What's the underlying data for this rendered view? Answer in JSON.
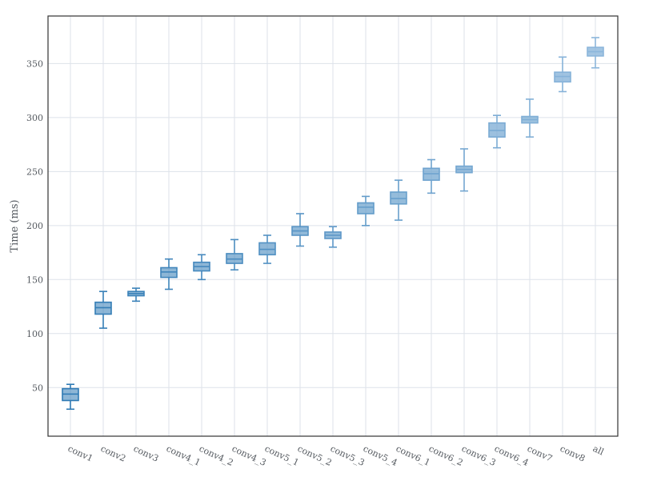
{
  "chart_data": {
    "type": "box",
    "title": "",
    "xlabel": "",
    "ylabel": "Time (ms)",
    "ylim": [
      5,
      394
    ],
    "yticks": [
      50,
      100,
      150,
      200,
      250,
      300,
      350
    ],
    "grid": true,
    "colors": {
      "box_dark": "#2f7ab4",
      "box_light": "#8cb6db",
      "grid": "#dde2ea",
      "axes": "#333333"
    },
    "categories": [
      "conv1",
      "conv2",
      "conv3",
      "conv4_1",
      "conv4_2",
      "conv4_3",
      "conv5_1",
      "conv5_2",
      "conv5_3",
      "conv5_4",
      "conv6_1",
      "conv6_2",
      "conv6_3",
      "conv6_4",
      "conv7",
      "conv8",
      "all"
    ],
    "boxes": [
      {
        "label": "conv1",
        "whislo": 30,
        "q1": 38,
        "med": 44,
        "q3": 49,
        "whishi": 53
      },
      {
        "label": "conv2",
        "whislo": 105,
        "q1": 118,
        "med": 124,
        "q3": 129,
        "whishi": 139
      },
      {
        "label": "conv3",
        "whislo": 130,
        "q1": 135,
        "med": 137,
        "q3": 139,
        "whishi": 142
      },
      {
        "label": "conv4_1",
        "whislo": 141,
        "q1": 152,
        "med": 157,
        "q3": 161,
        "whishi": 169
      },
      {
        "label": "conv4_2",
        "whislo": 150,
        "q1": 158,
        "med": 162,
        "q3": 166,
        "whishi": 173
      },
      {
        "label": "conv4_3",
        "whislo": 159,
        "q1": 165,
        "med": 169,
        "q3": 174,
        "whishi": 187
      },
      {
        "label": "conv5_1",
        "whislo": 165,
        "q1": 173,
        "med": 178,
        "q3": 184,
        "whishi": 191
      },
      {
        "label": "conv5_2",
        "whislo": 181,
        "q1": 191,
        "med": 195,
        "q3": 199,
        "whishi": 211
      },
      {
        "label": "conv5_3",
        "whislo": 180,
        "q1": 188,
        "med": 191,
        "q3": 194,
        "whishi": 199
      },
      {
        "label": "conv5_4",
        "whislo": 200,
        "q1": 211,
        "med": 217,
        "q3": 221,
        "whishi": 227
      },
      {
        "label": "conv6_1",
        "whislo": 205,
        "q1": 220,
        "med": 225,
        "q3": 231,
        "whishi": 242
      },
      {
        "label": "conv6_2",
        "whislo": 230,
        "q1": 242,
        "med": 248,
        "q3": 253,
        "whishi": 261
      },
      {
        "label": "conv6_3",
        "whislo": 232,
        "q1": 249,
        "med": 252,
        "q3": 255,
        "whishi": 271
      },
      {
        "label": "conv6_4",
        "whislo": 272,
        "q1": 282,
        "med": 288,
        "q3": 295,
        "whishi": 302
      },
      {
        "label": "conv7",
        "whislo": 282,
        "q1": 295,
        "med": 298,
        "q3": 301,
        "whishi": 317
      },
      {
        "label": "conv8",
        "whislo": 324,
        "q1": 333,
        "med": 338,
        "q3": 342,
        "whishi": 356
      },
      {
        "label": "all",
        "whislo": 346,
        "q1": 357,
        "med": 361,
        "q3": 365,
        "whishi": 374
      }
    ]
  }
}
